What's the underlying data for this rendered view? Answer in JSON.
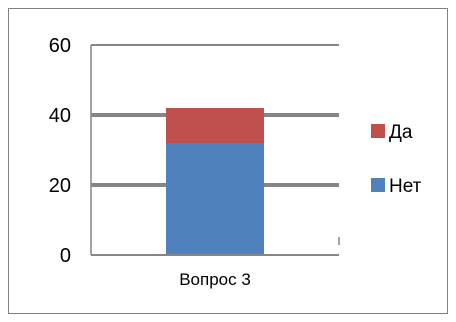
{
  "chart_data": {
    "type": "bar",
    "stacked": true,
    "categories": [
      "Вопрос 3"
    ],
    "series": [
      {
        "name": "Нет",
        "values": [
          32
        ],
        "color": "#4f81bd"
      },
      {
        "name": "Да",
        "values": [
          10
        ],
        "color": "#c0504d"
      }
    ],
    "ylim": [
      0,
      60
    ],
    "yticks": [
      "0",
      "20",
      "40",
      "60"
    ],
    "title": "",
    "xlabel": "",
    "ylabel": "",
    "grid": true,
    "legend_position": "right",
    "legend_order": [
      "Да",
      "Нет"
    ]
  }
}
